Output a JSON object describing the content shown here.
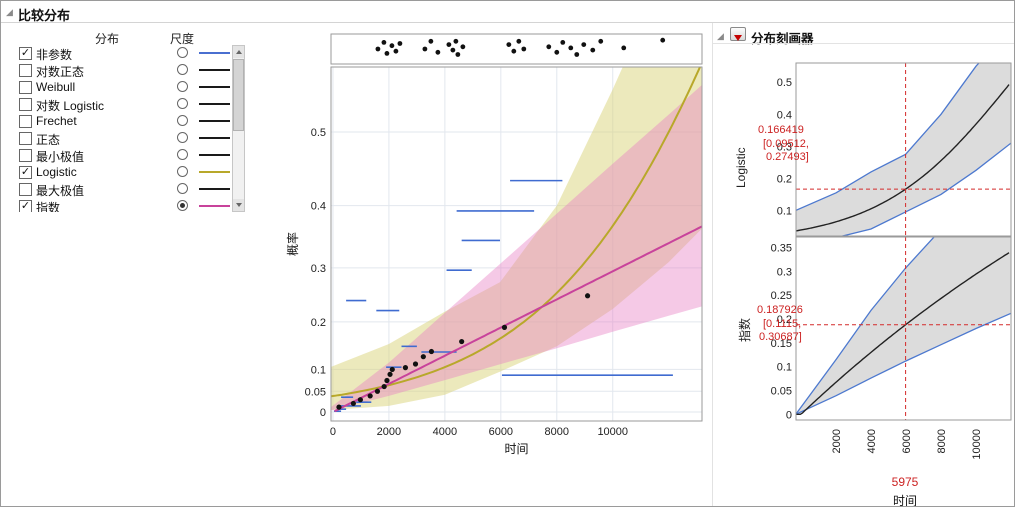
{
  "window": {
    "title": "比较分布"
  },
  "left_panel": {
    "col_distribution": "分布",
    "col_scale": "尺度",
    "rows": [
      {
        "label": "非参数",
        "checked": true,
        "radio": false,
        "line": "#4a6fd0"
      },
      {
        "label": "对数正态",
        "checked": false,
        "radio": false,
        "line": "#1a1a1a"
      },
      {
        "label": "Weibull",
        "checked": false,
        "radio": false,
        "line": "#1a1a1a"
      },
      {
        "label": "对数 Logistic",
        "checked": false,
        "radio": false,
        "line": "#1a1a1a"
      },
      {
        "label": "Frechet",
        "checked": false,
        "radio": false,
        "line": "#1a1a1a"
      },
      {
        "label": "正态",
        "checked": false,
        "radio": false,
        "line": "#1a1a1a"
      },
      {
        "label": "最小极值",
        "checked": false,
        "radio": false,
        "line": "#1a1a1a"
      },
      {
        "label": "Logistic",
        "checked": true,
        "radio": false,
        "line": "#b8a82a"
      },
      {
        "label": "最大极值",
        "checked": false,
        "radio": false,
        "line": "#1a1a1a"
      },
      {
        "label": "指数",
        "checked": true,
        "radio": true,
        "line": "#c8439b"
      }
    ]
  },
  "profiler_panel": {
    "title": "分布刻画器",
    "rows": [
      {
        "dist": "Logistic",
        "estimate": "0.166419",
        "ci1": "[0.09512,",
        "ci2": "0.27493]"
      },
      {
        "dist": "指数",
        "estimate": "0.187926",
        "ci1": "[0.1115,",
        "ci2": "0.30687]"
      }
    ],
    "x_value": "5975",
    "x_label": "时间"
  },
  "chart_data": {
    "main_plot": {
      "type": "probability-plot",
      "xlabel": "时间",
      "ylabel": "概率",
      "x_ticks": [
        0,
        2000,
        4000,
        6000,
        8000,
        10000
      ],
      "y_ticks": [
        0,
        0.05,
        0.1,
        0.2,
        0.3,
        0.4,
        0.5
      ],
      "x_range": [
        -70,
        13190
      ],
      "y_scale": "exponential-probability",
      "np_color": "#3f6bd0",
      "points": [
        [
          215,
          0.012
        ],
        [
          730,
          0.021
        ],
        [
          980,
          0.03
        ],
        [
          1330,
          0.039
        ],
        [
          1590,
          0.05
        ],
        [
          1830,
          0.061
        ],
        [
          1930,
          0.075
        ],
        [
          2040,
          0.089
        ],
        [
          2120,
          0.1
        ],
        [
          2590,
          0.104
        ],
        [
          2950,
          0.112
        ],
        [
          3230,
          0.128
        ],
        [
          3520,
          0.139
        ],
        [
          4600,
          0.16
        ],
        [
          6130,
          0.189
        ],
        [
          9100,
          0.25
        ]
      ],
      "np_segments": [
        [
          40,
          290,
          0.002
        ],
        [
          140,
          470,
          0.007
        ],
        [
          290,
          1000,
          0.015
        ],
        [
          290,
          720,
          0.036
        ],
        [
          830,
          1370,
          0.024
        ],
        [
          470,
          1190,
          0.241
        ],
        [
          1550,
          2370,
          0.222
        ],
        [
          1900,
          2450,
          0.105
        ],
        [
          2450,
          3000,
          0.15
        ],
        [
          3160,
          4420,
          0.138
        ],
        [
          4060,
          4960,
          0.296
        ],
        [
          4600,
          5970,
          0.346
        ],
        [
          4420,
          7190,
          0.392
        ],
        [
          6330,
          8200,
          0.436
        ],
        [
          6040,
          12150,
          0.087
        ]
      ],
      "event_points": [
        [
          1607,
          0.5
        ],
        [
          1821,
          0.2
        ],
        [
          1929,
          0.7
        ],
        [
          2107,
          0.35
        ],
        [
          2250,
          0.6
        ],
        [
          2393,
          0.25
        ],
        [
          3286,
          0.5
        ],
        [
          3500,
          0.15
        ],
        [
          3750,
          0.65
        ],
        [
          4143,
          0.3
        ],
        [
          4286,
          0.55
        ],
        [
          4393,
          0.15
        ],
        [
          4464,
          0.75
        ],
        [
          4643,
          0.4
        ],
        [
          6286,
          0.3
        ],
        [
          6464,
          0.6
        ],
        [
          6643,
          0.15
        ],
        [
          6821,
          0.5
        ],
        [
          7714,
          0.4
        ],
        [
          8000,
          0.65
        ],
        [
          8214,
          0.2
        ],
        [
          8500,
          0.45
        ],
        [
          8714,
          0.75
        ],
        [
          8964,
          0.3
        ],
        [
          9286,
          0.55
        ],
        [
          9571,
          0.15
        ],
        [
          10393,
          0.45
        ],
        [
          11786,
          0.1
        ]
      ]
    },
    "logistic": {
      "mu": 12000,
      "sigma": 3736,
      "color": "#b8a82a",
      "band_color": "#d9d37a",
      "estimate": 0.166419,
      "band": [
        [
          -300,
          0.004,
          0.1
        ],
        [
          2000,
          0.015,
          0.155
        ],
        [
          4000,
          0.042,
          0.22
        ],
        [
          5975,
          0.09512,
          0.27493
        ],
        [
          8000,
          0.15,
          0.4
        ],
        [
          10000,
          0.225,
          0.55
        ],
        [
          12000,
          0.31,
          0.67
        ],
        [
          13190,
          0.365,
          0.73
        ]
      ]
    },
    "exponential": {
      "theta": 28710,
      "color": "#c8439b",
      "band_color": "#e87fc4",
      "estimate": 0.187926,
      "band": [
        [
          -300,
          0,
          0
        ],
        [
          2000,
          0.039,
          0.115
        ],
        [
          4000,
          0.076,
          0.218
        ],
        [
          5975,
          0.1115,
          0.30687
        ],
        [
          8000,
          0.146,
          0.388
        ],
        [
          10000,
          0.18,
          0.459
        ],
        [
          12000,
          0.212,
          0.521
        ],
        [
          13190,
          0.23,
          0.555
        ]
      ]
    },
    "profiler": {
      "x_ticks": [
        2000,
        4000,
        6000,
        8000,
        10000
      ],
      "x_range": [
        -290,
        12000
      ],
      "x_value": 5975,
      "top": {
        "label": "Logistic",
        "y_ticks": [
          0.1,
          0.2,
          0.3,
          0.4,
          0.5
        ],
        "y_range": [
          0.02,
          0.56
        ]
      },
      "bottom": {
        "label": "指数",
        "y_ticks": [
          0,
          0.05,
          0.1,
          0.15,
          0.2,
          0.25,
          0.3,
          0.35
        ],
        "y_range": [
          -0.012,
          0.372
        ]
      }
    }
  }
}
